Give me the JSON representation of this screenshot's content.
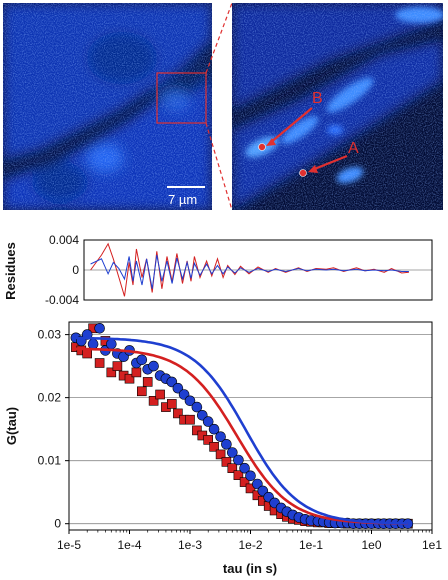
{
  "images": {
    "scale_bar_label": "7 µm",
    "point_labels": [
      "A",
      "B"
    ]
  },
  "colors": {
    "series_a": "#d42020",
    "series_b": "#1f3fd0",
    "annotation": "#e03030"
  },
  "chart_data": [
    {
      "type": "line",
      "title": "",
      "xlabel": "",
      "ylabel": "Residues",
      "x_scale": "log",
      "xlim": [
        1e-05,
        10
      ],
      "ylim": [
        -0.004,
        0.004
      ],
      "yticks": [
        "0.004",
        "0",
        "-0.004"
      ],
      "grid": true,
      "series": [
        {
          "color": "#d42020",
          "x": [
            1.3e-05,
            2e-05,
            2.6e-05,
            3.2e-05,
            4e-05,
            5e-05,
            6e-05,
            7e-05,
            8e-05,
            0.0001,
            0.00012,
            0.00015,
            0.00018,
            0.00022,
            0.00027,
            0.00033,
            0.0004,
            0.0005,
            0.0006,
            0.0007,
            0.0008,
            0.001,
            0.0013,
            0.0016,
            0.002,
            0.0025,
            0.003,
            0.004,
            0.005,
            0.007,
            0.01,
            0.015,
            0.02,
            0.03,
            0.05,
            0.07,
            0.1,
            0.15,
            0.2,
            0.3,
            0.5,
            0.7,
            1,
            1.5,
            2,
            3,
            4
          ],
          "y": [
            0,
            0.002,
            0.0035,
            0.0015,
            -0.001,
            -0.0035,
            0.001,
            -0.002,
            0.0028,
            -0.001,
            0.0015,
            -0.003,
            0.0025,
            -0.0025,
            0.0018,
            -0.0015,
            0.0022,
            -0.0018,
            0.0012,
            -0.0015,
            0.0018,
            -0.001,
            0.0012,
            -0.0008,
            0.0015,
            -0.001,
            0.0006,
            -0.0006,
            0.0005,
            -0.0005,
            0.0004,
            -0.0003,
            0.0002,
            -0.0003,
            0.0003,
            -0.0002,
            0.0002,
            0.0001,
            0.0003,
            -0.0002,
            0.0003,
            -0.0001,
            0.0001,
            -0.0003,
            0.0002,
            -0.0004,
            -0.0003
          ]
        },
        {
          "color": "#1f3fd0",
          "x": [
            1.3e-05,
            2e-05,
            2.6e-05,
            3.2e-05,
            4e-05,
            5e-05,
            6e-05,
            7e-05,
            8e-05,
            0.0001,
            0.00012,
            0.00015,
            0.00018,
            0.00022,
            0.00027,
            0.00033,
            0.0004,
            0.0005,
            0.0006,
            0.0007,
            0.0008,
            0.001,
            0.0013,
            0.0016,
            0.002,
            0.0025,
            0.003,
            0.004,
            0.005,
            0.007,
            0.01,
            0.015,
            0.02,
            0.03,
            0.05,
            0.07,
            0.1,
            0.15,
            0.2,
            0.3,
            0.5,
            0.7,
            1,
            1.5,
            2,
            3,
            4
          ],
          "y": [
            0.0008,
            0.0015,
            -0.0005,
            0.001,
            0.0002,
            -0.0012,
            0.0018,
            -0.0015,
            0.0012,
            -0.002,
            0.0015,
            -0.0025,
            0.002,
            -0.0015,
            0.0012,
            -0.0018,
            0.0016,
            -0.0012,
            0.001,
            -0.0011,
            0.0009,
            -0.0007,
            0.0008,
            -0.0005,
            0.0006,
            -0.0005,
            0.0004,
            -0.0004,
            0.0003,
            -0.0003,
            0.0002,
            -0.0002,
            0.0001,
            -0.0002,
            0.0002,
            -0.0001,
            0.0001,
            0,
            0.0001,
            -0.0001,
            0.0001,
            -0.0001,
            0,
            -0.0001,
            0,
            -0.0002,
            -0.0002
          ]
        }
      ]
    },
    {
      "type": "scatter",
      "title": "",
      "xlabel": "tau (in s)",
      "ylabel": "G(tau)",
      "x_scale": "log",
      "xlim": [
        1e-05,
        10
      ],
      "ylim": [
        -0.001,
        0.032
      ],
      "xticks": [
        "1e-5",
        "1e-4",
        "1e-3",
        "1e-2",
        "1e-1",
        "1e0",
        "1e1"
      ],
      "yticks": [
        "0.03",
        "0.02",
        "0.01",
        "0"
      ],
      "grid": true,
      "series": [
        {
          "marker": "square",
          "color": "#d42020",
          "fit": {
            "G0": 0.0278,
            "tau_d": 0.006
          },
          "x": [
            1.3e-05,
            1.6e-05,
            2e-05,
            2.5e-05,
            3.2e-05,
            4e-05,
            5e-05,
            6.3e-05,
            8e-05,
            0.0001,
            0.00013,
            0.00016,
            0.0002,
            0.00025,
            0.00032,
            0.0004,
            0.0005,
            0.00063,
            0.0008,
            0.001,
            0.0013,
            0.0016,
            0.002,
            0.0025,
            0.0032,
            0.004,
            0.005,
            0.0063,
            0.008,
            0.01,
            0.013,
            0.016,
            0.02,
            0.025,
            0.032,
            0.04,
            0.05,
            0.063,
            0.08,
            0.1,
            0.13,
            0.16,
            0.2,
            0.25,
            0.32,
            0.4,
            0.5,
            0.63,
            0.8,
            1,
            1.3,
            1.6,
            2,
            2.5,
            3.2,
            4
          ],
          "y": [
            0.028,
            0.0275,
            0.027,
            0.031,
            0.0255,
            0.029,
            0.024,
            0.025,
            0.0235,
            0.023,
            0.024,
            0.021,
            0.0225,
            0.0195,
            0.0205,
            0.0185,
            0.019,
            0.0175,
            0.0165,
            0.0165,
            0.0148,
            0.014,
            0.0133,
            0.0122,
            0.011,
            0.0098,
            0.0088,
            0.0077,
            0.0066,
            0.0056,
            0.0045,
            0.0036,
            0.0028,
            0.0021,
            0.0015,
            0.0011,
            0.0008,
            0.0006,
            0.0004,
            0.0003,
            0.0002,
            0.0002,
            0.0001,
            0.0001,
            0.0001,
            0,
            0,
            0,
            0,
            0,
            0,
            0,
            0,
            0,
            0,
            0
          ]
        },
        {
          "marker": "circle",
          "color": "#1f3fd0",
          "fit": {
            "G0": 0.0295,
            "tau_d": 0.0085
          },
          "x": [
            1.3e-05,
            1.6e-05,
            2e-05,
            2.5e-05,
            3.2e-05,
            4e-05,
            5e-05,
            6.3e-05,
            8e-05,
            0.0001,
            0.00013,
            0.00016,
            0.0002,
            0.00025,
            0.00032,
            0.0004,
            0.0005,
            0.00063,
            0.0008,
            0.001,
            0.0013,
            0.0016,
            0.002,
            0.0025,
            0.0032,
            0.004,
            0.005,
            0.0063,
            0.008,
            0.01,
            0.013,
            0.016,
            0.02,
            0.025,
            0.032,
            0.04,
            0.05,
            0.063,
            0.08,
            0.1,
            0.13,
            0.16,
            0.2,
            0.25,
            0.32,
            0.4,
            0.5,
            0.63,
            0.8,
            1,
            1.3,
            1.6,
            2,
            2.5,
            3.2,
            4
          ],
          "y": [
            0.0295,
            0.029,
            0.03,
            0.0285,
            0.031,
            0.0275,
            0.0285,
            0.027,
            0.0265,
            0.0275,
            0.0255,
            0.026,
            0.0245,
            0.025,
            0.0235,
            0.023,
            0.0225,
            0.0215,
            0.0205,
            0.0195,
            0.0185,
            0.0172,
            0.0162,
            0.015,
            0.0138,
            0.0126,
            0.0113,
            0.0101,
            0.0088,
            0.0076,
            0.0063,
            0.0052,
            0.0042,
            0.0033,
            0.0025,
            0.0019,
            0.0014,
            0.001,
            0.0007,
            0.0005,
            0.0004,
            0.0003,
            0.0002,
            0.0001,
            0.0001,
            0.0001,
            0,
            0,
            0,
            0,
            0,
            0,
            0,
            0,
            0,
            0
          ]
        }
      ]
    }
  ]
}
